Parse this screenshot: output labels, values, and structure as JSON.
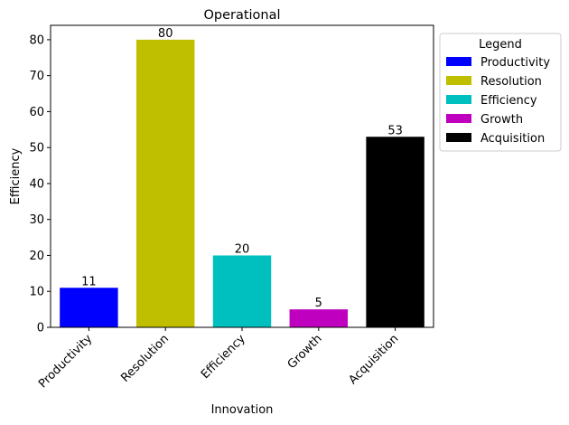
{
  "chart_data": {
    "type": "bar",
    "title": "Operational",
    "xlabel": "Innovation",
    "ylabel": "Efficiency",
    "categories": [
      "Productivity",
      "Resolution",
      "Efficiency",
      "Growth",
      "Acquisition"
    ],
    "values": [
      11,
      80,
      20,
      5,
      53
    ],
    "colors": [
      "#0000ff",
      "#bfbf00",
      "#00bfbf",
      "#bf00bf",
      "#000000"
    ],
    "ylim": [
      0,
      84
    ],
    "yticks": [
      0,
      10,
      20,
      30,
      40,
      50,
      60,
      70,
      80
    ],
    "grid": false,
    "legend": {
      "title": "Legend",
      "position": "outside-top-right",
      "entries": [
        "Productivity",
        "Resolution",
        "Efficiency",
        "Growth",
        "Acquisition"
      ]
    }
  }
}
